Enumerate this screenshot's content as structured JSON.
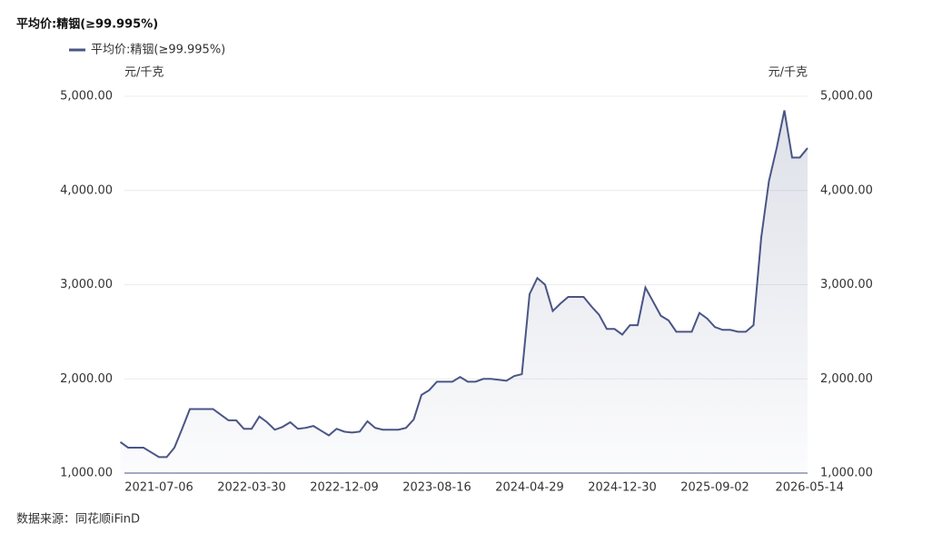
{
  "chart_data": {
    "type": "line",
    "title": "平均价:精铟(≥99.995%)",
    "y_unit": "元/千克",
    "y2_unit": "元/千克",
    "source": "数据来源：同花顺iFinD",
    "categories": [
      null,
      null,
      null,
      null,
      null,
      "2021-07-06",
      null,
      null,
      null,
      null,
      null,
      null,
      null,
      null,
      null,
      null,
      null,
      "2022-03-30",
      null,
      null,
      null,
      null,
      null,
      null,
      null,
      null,
      null,
      null,
      null,
      "2022-12-09",
      null,
      null,
      null,
      null,
      null,
      null,
      null,
      null,
      null,
      null,
      null,
      "2023-08-16",
      null,
      null,
      null,
      null,
      null,
      null,
      null,
      null,
      null,
      null,
      null,
      "2024-04-29",
      null,
      null,
      null,
      null,
      null,
      null,
      null,
      null,
      null,
      null,
      null,
      "2024-12-30",
      null,
      null,
      null,
      null,
      null,
      null,
      null,
      null,
      null,
      null,
      null,
      "2025-09-02",
      null,
      null,
      null,
      null,
      null,
      null,
      null,
      null,
      null,
      null,
      null,
      "2026-05-14"
    ],
    "series": [
      {
        "name": "平均价:精铟(≥99.995%)",
        "color": "#4a5585",
        "values": [
          1330,
          1270,
          1270,
          1270,
          1220,
          1170,
          1170,
          1270,
          1470,
          1680,
          1680,
          1680,
          1680,
          1620,
          1560,
          1560,
          1470,
          1470,
          1600,
          1540,
          1460,
          1490,
          1540,
          1470,
          1480,
          1500,
          1450,
          1400,
          1470,
          1440,
          1430,
          1440,
          1550,
          1480,
          1460,
          1460,
          1460,
          1480,
          1570,
          1830,
          1880,
          1970,
          1970,
          1970,
          2020,
          1970,
          1970,
          2000,
          2000,
          1990,
          1980,
          2030,
          2050,
          2900,
          3070,
          3000,
          2720,
          2800,
          2870,
          2870,
          2870,
          2770,
          2680,
          2530,
          2530,
          2470,
          2570,
          2570,
          2970,
          2820,
          2670,
          2620,
          2500,
          2500,
          2500,
          2700,
          2640,
          2550,
          2520,
          2520,
          2500,
          2500,
          2570,
          3500,
          4100,
          4450,
          4850,
          4350,
          4350,
          4450
        ]
      }
    ],
    "ylim": [
      1000,
      5000
    ],
    "yticks": [
      {
        "value": 1000,
        "label": "1,000.00"
      },
      {
        "value": 2000,
        "label": "2,000.00"
      },
      {
        "value": 3000,
        "label": "3,000.00"
      },
      {
        "value": 4000,
        "label": "4,000.00"
      },
      {
        "value": 5000,
        "label": "5,000.00"
      }
    ],
    "y2lim": [
      1000,
      5000
    ],
    "y2ticks": [
      {
        "value": 1000,
        "label": "1,000.00"
      },
      {
        "value": 2000,
        "label": "2,000.00"
      },
      {
        "value": 3000,
        "label": "3,000.00"
      },
      {
        "value": 4000,
        "label": "4,000.00"
      },
      {
        "value": 5000,
        "label": "5,000.00"
      }
    ],
    "grid": true
  }
}
